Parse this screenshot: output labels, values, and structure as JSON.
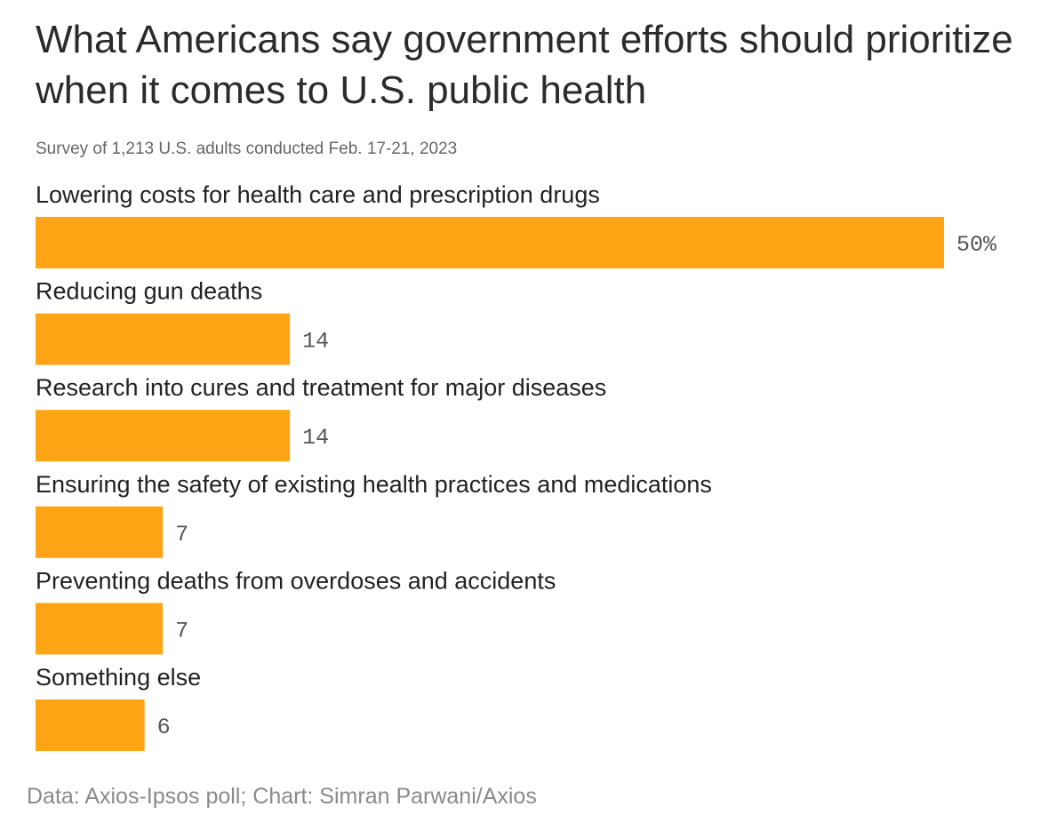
{
  "header": {
    "title": "What Americans say government efforts should prioritize when it comes to U.S. public health",
    "subtitle": "Survey of 1,213 U.S. adults conducted Feb. 17-21, 2023"
  },
  "footer": {
    "source": "Data: Axios-Ipsos poll; Chart: Simran Parwani/Axios"
  },
  "colors": {
    "bar": "#FFA515"
  },
  "chart_data": {
    "type": "bar",
    "orientation": "horizontal",
    "title": "What Americans say government efforts should prioritize when it comes to U.S. public health",
    "subtitle": "Survey of 1,213 U.S. adults conducted Feb. 17-21, 2023",
    "categories": [
      "Lowering costs for health care and prescription drugs",
      "Reducing gun deaths",
      "Research into cures and treatment for major diseases",
      "Ensuring the safety of existing health practices and medications",
      "Preventing deaths from overdoses and accidents",
      "Something else"
    ],
    "values": [
      50,
      14,
      14,
      7,
      7,
      6
    ],
    "value_labels": [
      "50%",
      "14",
      "14",
      "7",
      "7",
      "6"
    ],
    "xlim": [
      0,
      50
    ],
    "grid": false,
    "legend": "none"
  }
}
